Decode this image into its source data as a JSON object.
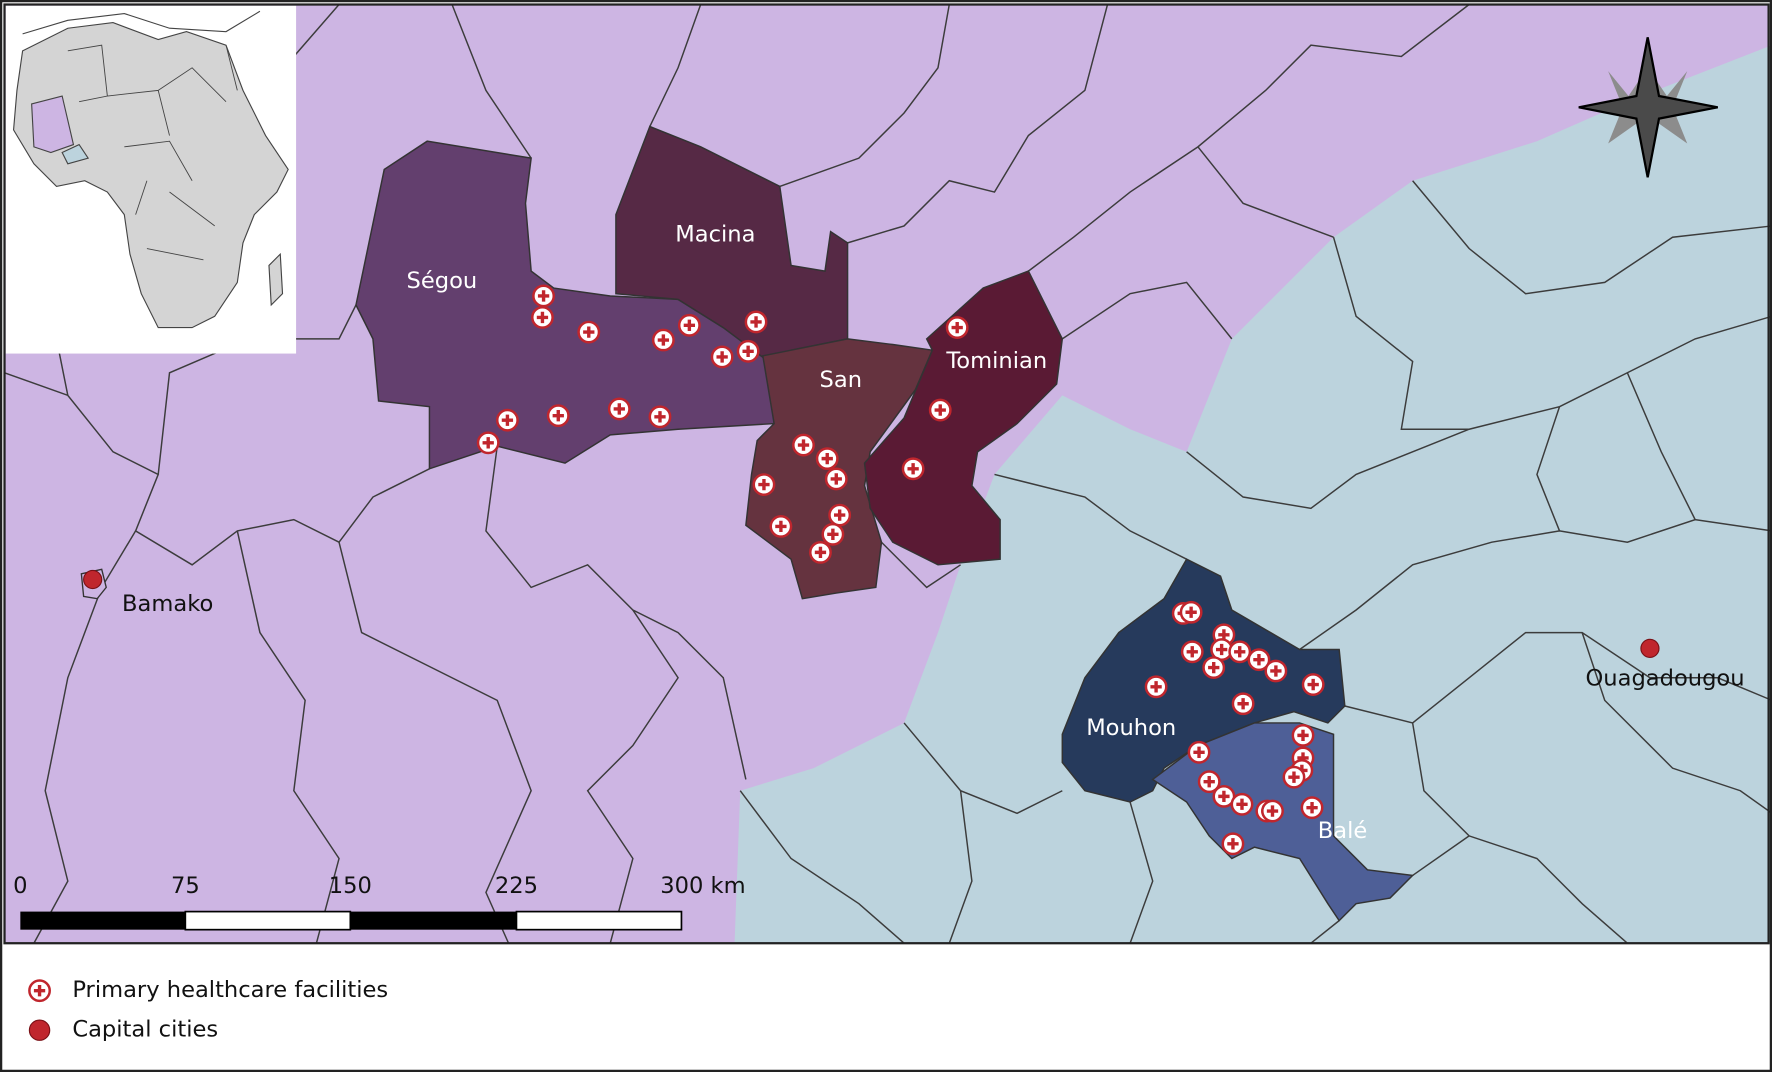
{
  "map": {
    "regions": [
      "Ségou",
      "Macina",
      "San",
      "Tominian",
      "Mouhon",
      "Balé"
    ],
    "cities": [
      "Bamako",
      "Ouagadougou"
    ],
    "scale_bar": {
      "ticks": [
        "0",
        "75",
        "150",
        "225",
        "300 km"
      ]
    }
  },
  "legend": {
    "items": [
      "Primary healthcare facilities",
      "Capital cities"
    ]
  }
}
